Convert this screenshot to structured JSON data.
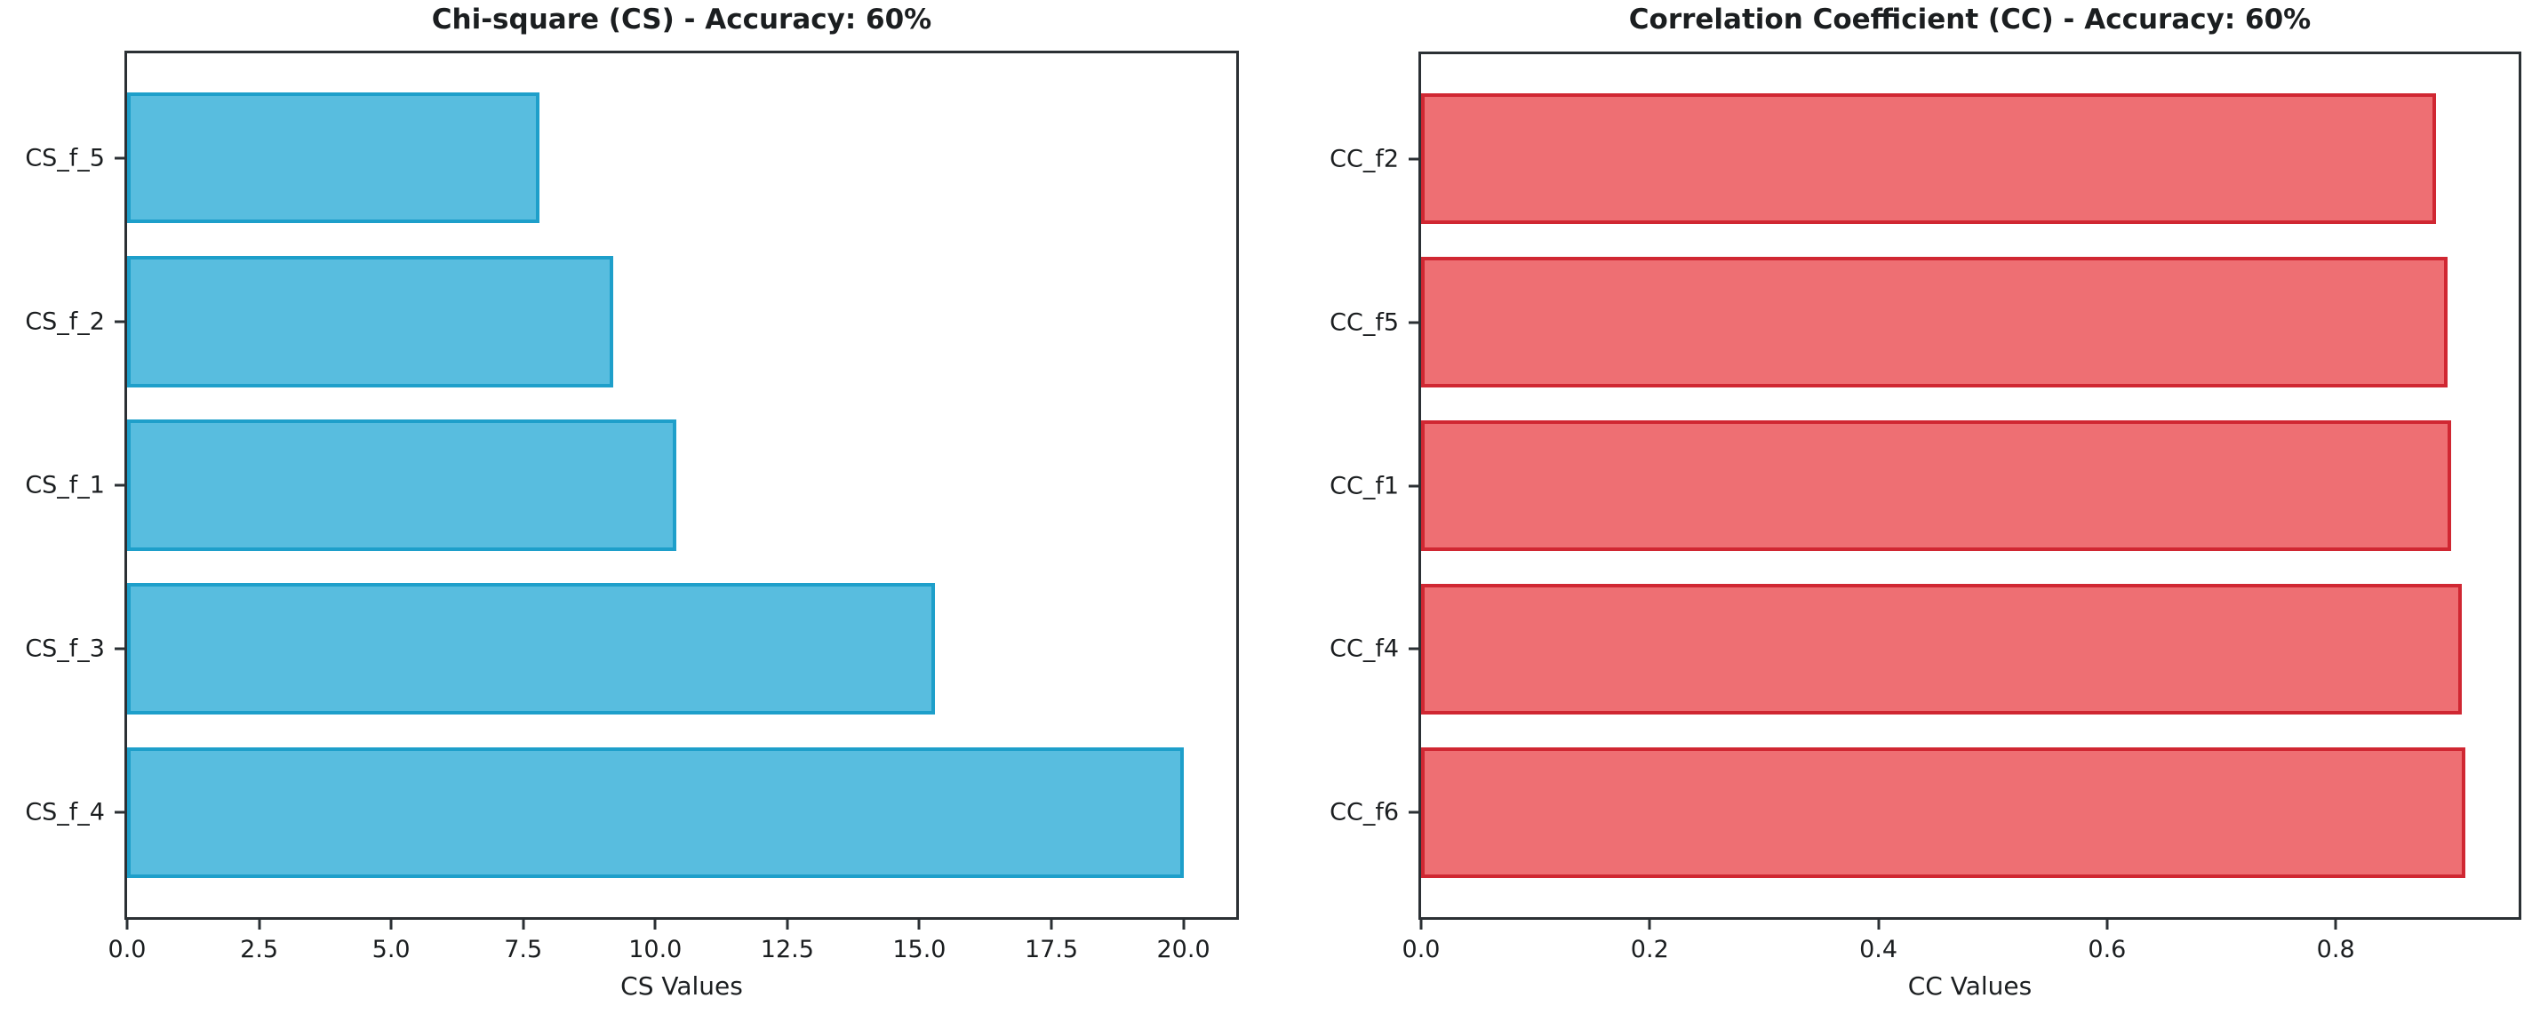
{
  "figure": {
    "background": "#ffffff",
    "spine_color": "#2b3034",
    "text_color": "#1b1e20"
  },
  "chart_data": [
    {
      "type": "bar",
      "orientation": "horizontal",
      "title": "Chi-square (CS) - Accuracy: 60%",
      "xlabel": "CS Values",
      "categories": [
        "CS_f_5",
        "CS_f_2",
        "CS_f_1",
        "CS_f_3",
        "CS_f_4"
      ],
      "values": [
        7.8,
        9.2,
        10.4,
        15.3,
        20.0
      ],
      "xlim": [
        0,
        21
      ],
      "xtick_values": [
        0,
        2.5,
        5,
        7.5,
        10,
        12.5,
        15,
        17.5,
        20
      ],
      "xtick_labels": [
        "0.0",
        "2.5",
        "5.0",
        "7.5",
        "10.0",
        "12.5",
        "15.0",
        "17.5",
        "20.0"
      ],
      "bar_color": "#58BDDF",
      "bar_edge_color": "#1E9FCA",
      "grid": false,
      "legend": null
    },
    {
      "type": "bar",
      "orientation": "horizontal",
      "title": "Correlation Coefficient (CC) - Accuracy: 60%",
      "xlabel": "CC Values",
      "categories": [
        "CC_f2",
        "CC_f5",
        "CC_f1",
        "CC_f4",
        "CC_f6"
      ],
      "values": [
        0.888,
        0.898,
        0.901,
        0.91,
        0.913
      ],
      "xlim": [
        0,
        0.96
      ],
      "xtick_values": [
        0,
        0.2,
        0.4,
        0.6,
        0.8
      ],
      "xtick_labels": [
        "0.0",
        "0.2",
        "0.4",
        "0.6",
        "0.8"
      ],
      "bar_color": "#EE6F73",
      "bar_edge_color": "#D02732",
      "grid": false,
      "legend": null
    }
  ]
}
